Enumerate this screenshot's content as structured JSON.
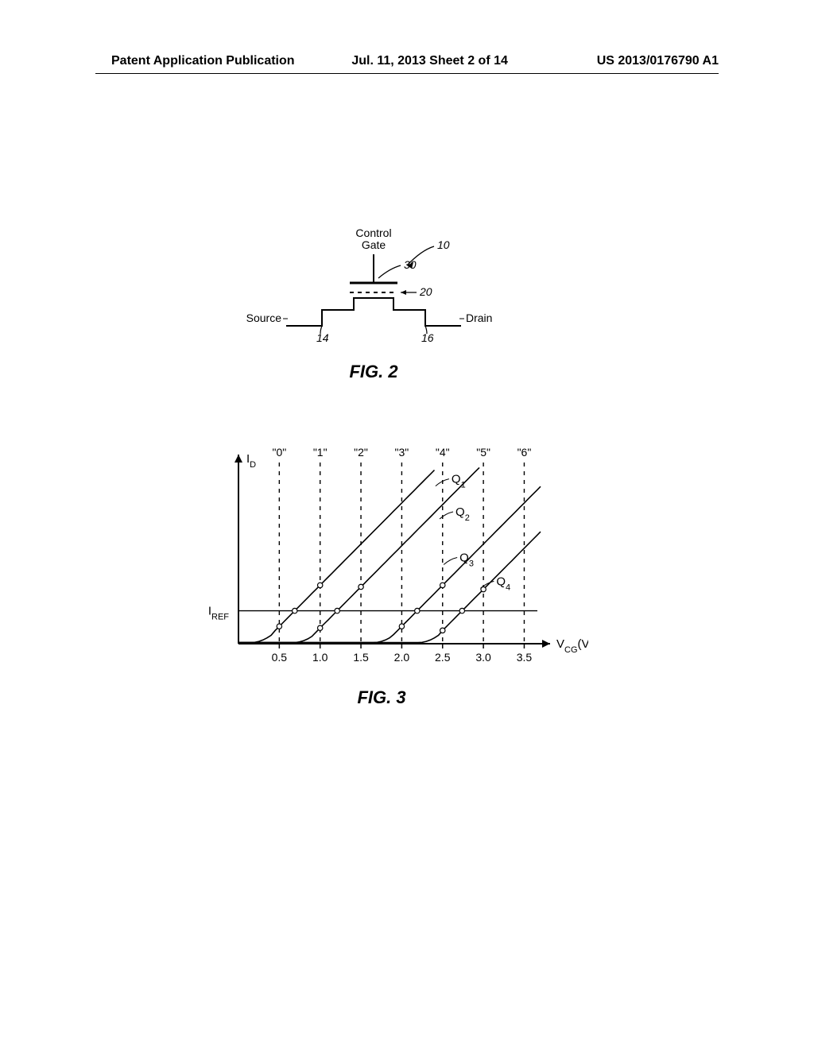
{
  "header": {
    "left": "Patent Application Publication",
    "mid": "Jul. 11, 2013  Sheet 2 of 14",
    "right": "US 2013/0176790 A1"
  },
  "fig2": {
    "title": "FIG. 2",
    "labels": {
      "control_gate": "Control\nGate",
      "source": "Source",
      "drain": "Drain",
      "n10": "10",
      "n14": "14",
      "n16": "16",
      "n20": "20",
      "n30": "30"
    },
    "colors": {
      "stroke": "#000000",
      "bg": "#ffffff"
    },
    "stroke_width": 2
  },
  "fig3": {
    "title": "FIG. 3",
    "y_label": "I",
    "y_sub": "D",
    "x_label": "V",
    "x_sub1": "CG",
    "x_unit": "(V)",
    "iref_label": "I",
    "iref_sub": "REF",
    "states": [
      "\"0\"",
      "\"1\"",
      "\"2\"",
      "\"3\"",
      "\"4\"",
      "\"5\"",
      "\"6\""
    ],
    "state_x": [
      0.5,
      1.0,
      1.5,
      2.0,
      2.5,
      3.0,
      3.5
    ],
    "x_ticks": [
      0.5,
      1.0,
      1.5,
      2.0,
      2.5,
      3.0,
      3.5
    ],
    "xlim": [
      0,
      3.7
    ],
    "ylim": [
      0,
      1.0
    ],
    "iref_y": 0.18,
    "curves": [
      {
        "label": "Q",
        "sub": "1",
        "x0": 0.4,
        "label_at_x": 2.55,
        "label_at_y": 0.88
      },
      {
        "label": "Q",
        "sub": "2",
        "x0": 0.92,
        "label_at_x": 2.6,
        "label_at_y": 0.7
      },
      {
        "label": "Q",
        "sub": "3",
        "x0": 1.9,
        "label_at_x": 2.65,
        "label_at_y": 0.45
      },
      {
        "label": "Q",
        "sub": "4",
        "x0": 2.45,
        "label_at_x": 3.1,
        "label_at_y": 0.32
      }
    ],
    "colors": {
      "stroke": "#000000",
      "dash": "#000000",
      "bg": "#ffffff"
    },
    "stroke_width": 2,
    "curve_width": 1.6,
    "dash_pattern": "5,6",
    "marker_r": 3.2,
    "font_size_axis": 14,
    "font_size_state": 14,
    "font_size_curve": 15
  }
}
